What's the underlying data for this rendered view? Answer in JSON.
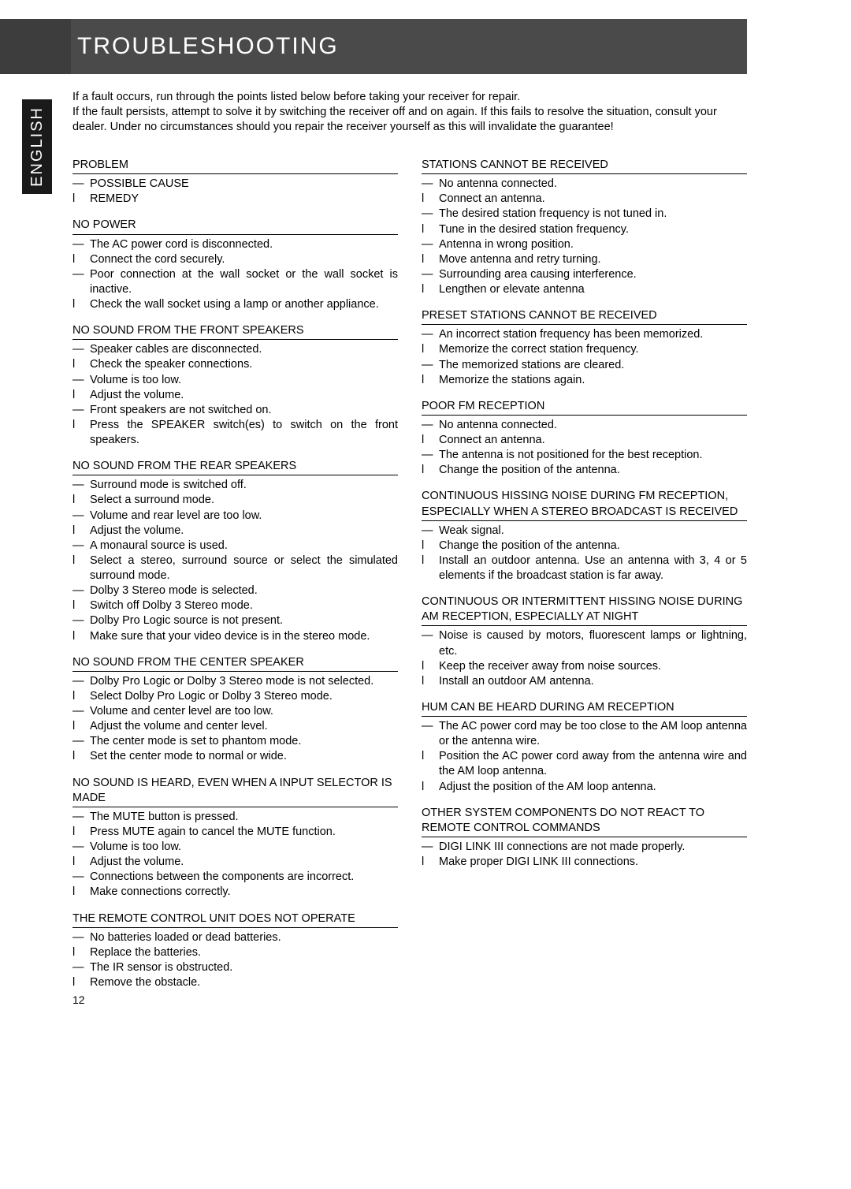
{
  "header": {
    "title": "TROUBLESHOOTING"
  },
  "lang": "ENGLISH",
  "intro": [
    "If a fault occurs, run through the points listed below before taking your receiver for repair.",
    "If the fault persists, attempt to solve it by switching the receiver off and on again. If this fails to resolve the situation, consult your dealer. Under no circumstances should you repair the receiver yourself as this will invalidate the guarantee!"
  ],
  "left": [
    {
      "head": "PROBLEM",
      "items": [
        {
          "p": "—",
          "t": "POSSIBLE CAUSE"
        },
        {
          "p": "l",
          "t": "REMEDY"
        }
      ]
    },
    {
      "head": "NO POWER",
      "items": [
        {
          "p": "—",
          "t": "The AC power cord is disconnected."
        },
        {
          "p": "l",
          "t": "Connect the cord securely."
        },
        {
          "p": "—",
          "t": "Poor connection at the wall socket or the wall socket is inactive.",
          "j": true
        },
        {
          "p": "l",
          "t": "Check the wall socket using a lamp or another appliance."
        }
      ]
    },
    {
      "head": "NO SOUND FROM THE FRONT SPEAKERS",
      "items": [
        {
          "p": "—",
          "t": "Speaker cables are disconnected."
        },
        {
          "p": "l",
          "t": "Check the speaker connections."
        },
        {
          "p": "—",
          "t": "Volume is too low."
        },
        {
          "p": "l",
          "t": "Adjust the volume."
        },
        {
          "p": "—",
          "t": "Front speakers are not switched on."
        },
        {
          "p": "l",
          "t": "Press the SPEAKER switch(es) to switch on the front speakers.",
          "j": true
        }
      ]
    },
    {
      "head": "NO SOUND FROM THE REAR SPEAKERS",
      "items": [
        {
          "p": "—",
          "t": "Surround mode is switched off."
        },
        {
          "p": "l",
          "t": "Select a surround mode."
        },
        {
          "p": "—",
          "t": "Volume and rear level are too low."
        },
        {
          "p": "l",
          "t": "Adjust the volume."
        },
        {
          "p": "—",
          "t": "A monaural source is used."
        },
        {
          "p": "l",
          "t": "Select a stereo, surround source or select the simulated surround mode.",
          "j": true
        },
        {
          "p": "—",
          "t": "Dolby 3 Stereo mode is selected."
        },
        {
          "p": "l",
          "t": "Switch off Dolby 3 Stereo mode."
        },
        {
          "p": "—",
          "t": "Dolby Pro Logic source is not present."
        },
        {
          "p": "l",
          "t": "Make sure that your video device is in the stereo mode."
        }
      ]
    },
    {
      "head": "NO SOUND FROM THE CENTER SPEAKER",
      "items": [
        {
          "p": "—",
          "t": "Dolby Pro Logic or Dolby 3 Stereo mode is not selected."
        },
        {
          "p": "l",
          "t": "Select Dolby Pro Logic or Dolby 3 Stereo mode."
        },
        {
          "p": "—",
          "t": "Volume and center level are too low."
        },
        {
          "p": "l",
          "t": "Adjust the volume and center level."
        },
        {
          "p": "—",
          "t": "The center mode is set to phantom mode."
        },
        {
          "p": "l",
          "t": "Set the center mode to normal or wide."
        }
      ]
    },
    {
      "head": "NO SOUND IS HEARD, EVEN WHEN A INPUT SELECTOR IS MADE",
      "items": [
        {
          "p": "—",
          "t": "The MUTE button is pressed."
        },
        {
          "p": "l",
          "t": "Press MUTE again to cancel the MUTE function."
        },
        {
          "p": "—",
          "t": "Volume is too low."
        },
        {
          "p": "l",
          "t": "Adjust the volume."
        },
        {
          "p": "—",
          "t": "Connections between the components are incorrect."
        },
        {
          "p": "l",
          "t": "Make connections correctly."
        }
      ]
    },
    {
      "head": "THE REMOTE CONTROL UNIT DOES NOT OPERATE",
      "items": [
        {
          "p": "—",
          "t": "No batteries loaded or dead batteries."
        },
        {
          "p": "l",
          "t": "Replace the batteries."
        },
        {
          "p": "—",
          "t": "The IR sensor is obstructed."
        },
        {
          "p": "l",
          "t": "Remove the obstacle."
        }
      ]
    }
  ],
  "right": [
    {
      "head": "STATIONS CANNOT BE RECEIVED",
      "items": [
        {
          "p": "—",
          "t": "No antenna connected."
        },
        {
          "p": "l",
          "t": "Connect an antenna."
        },
        {
          "p": "—",
          "t": "The desired station frequency is not tuned in."
        },
        {
          "p": "l",
          "t": "Tune in the desired station frequency."
        },
        {
          "p": "—",
          "t": "Antenna in wrong position."
        },
        {
          "p": "l",
          "t": "Move antenna and retry turning."
        },
        {
          "p": "—",
          "t": "Surrounding area causing interference."
        },
        {
          "p": "l",
          "t": "Lengthen or elevate antenna"
        }
      ]
    },
    {
      "head": "PRESET STATIONS CANNOT BE RECEIVED",
      "items": [
        {
          "p": "—",
          "t": "An incorrect station frequency has been memorized."
        },
        {
          "p": "l",
          "t": "Memorize the correct station frequency."
        },
        {
          "p": "—",
          "t": "The memorized stations are cleared."
        },
        {
          "p": "l",
          "t": "Memorize the stations again."
        }
      ]
    },
    {
      "head": "POOR FM RECEPTION",
      "items": [
        {
          "p": "—",
          "t": "No antenna connected."
        },
        {
          "p": "l",
          "t": "Connect an antenna."
        },
        {
          "p": "—",
          "t": "The antenna is not positioned for the best reception."
        },
        {
          "p": "l",
          "t": "Change the position of the antenna."
        }
      ]
    },
    {
      "head": "CONTINUOUS HISSING NOISE DURING FM RECEPTION, ESPECIALLY WHEN A STEREO BROADCAST IS RECEIVED",
      "items": [
        {
          "p": "—",
          "t": "Weak signal."
        },
        {
          "p": "l",
          "t": "Change the position of the antenna."
        },
        {
          "p": "l",
          "t": "Install an outdoor antenna. Use an antenna with 3, 4 or 5 elements if the broadcast station is far away.",
          "j": true
        }
      ]
    },
    {
      "head": "CONTINUOUS OR INTERMITTENT HISSING NOISE DURING AM RECEPTION, ESPECIALLY AT NIGHT",
      "items": [
        {
          "p": "—",
          "t": "Noise is caused by motors, fluorescent lamps or lightning, etc.",
          "j": true
        },
        {
          "p": "l",
          "t": "Keep the receiver away from noise sources."
        },
        {
          "p": "l",
          "t": "Install an outdoor AM antenna."
        }
      ]
    },
    {
      "head": " HUM CAN BE HEARD DURING AM RECEPTION",
      "items": [
        {
          "p": "—",
          "t": "The AC power cord may be too close to the AM loop antenna or the antenna wire.",
          "j": true
        },
        {
          "p": "l",
          "t": "Position the AC power cord away from the antenna wire and the AM loop antenna.",
          "j": true
        },
        {
          "p": "l",
          "t": "Adjust the position of the AM loop antenna."
        }
      ]
    },
    {
      "head": "OTHER SYSTEM COMPONENTS DO NOT REACT TO REMOTE CONTROL COMMANDS",
      "items": [
        {
          "p": "—",
          "t": "DIGI LINK III connections are not made properly."
        },
        {
          "p": "l",
          "t": "Make proper DIGI LINK III  connections."
        }
      ]
    }
  ],
  "page_number": "12"
}
